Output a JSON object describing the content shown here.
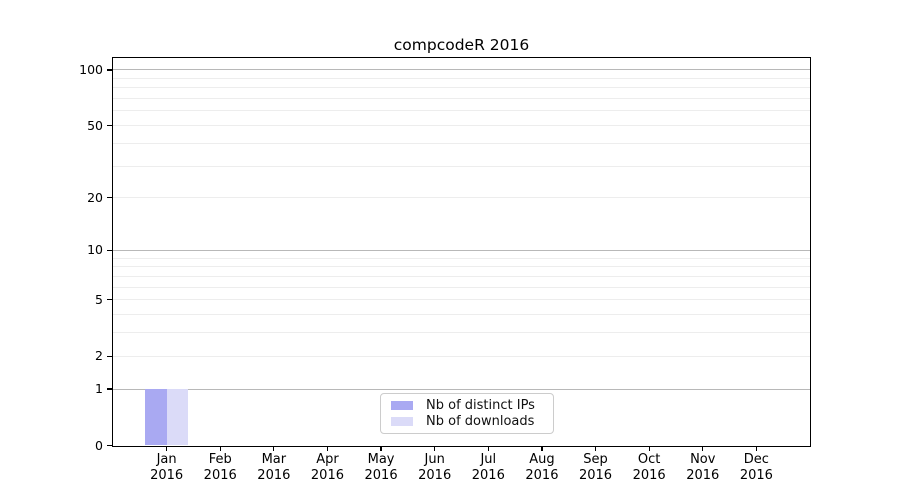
{
  "chart_data": {
    "type": "bar",
    "title": "compcodeR 2016",
    "months": [
      "Jan",
      "Feb",
      "Mar",
      "Apr",
      "May",
      "Jun",
      "Jul",
      "Aug",
      "Sep",
      "Oct",
      "Nov",
      "Dec"
    ],
    "year": "2016",
    "series": [
      {
        "name": "Nb of distinct IPs",
        "color": "#a9a9f2",
        "values": [
          1,
          0,
          0,
          0,
          0,
          0,
          0,
          0,
          0,
          0,
          0,
          0
        ]
      },
      {
        "name": "Nb of downloads",
        "color": "#dbdbf8",
        "values": [
          1,
          0,
          0,
          0,
          0,
          0,
          0,
          0,
          0,
          0,
          0,
          0
        ]
      }
    ],
    "y_ticks": [
      0,
      1,
      2,
      5,
      10,
      20,
      50,
      100
    ],
    "y_gridlines_major": [
      1,
      10,
      100
    ],
    "y_gridlines_minor": [
      2,
      3,
      4,
      5,
      6,
      7,
      8,
      9,
      20,
      30,
      40,
      50,
      60,
      70,
      80,
      90
    ],
    "y_scale": "log10(1+y)",
    "y_max": 116,
    "ylim": [
      0,
      116
    ],
    "grid": true,
    "legend_position": "bottom-center",
    "colors": {
      "grid_major": "#b8b8b8",
      "grid_minor": "#ededed",
      "axis": "#000000"
    }
  }
}
